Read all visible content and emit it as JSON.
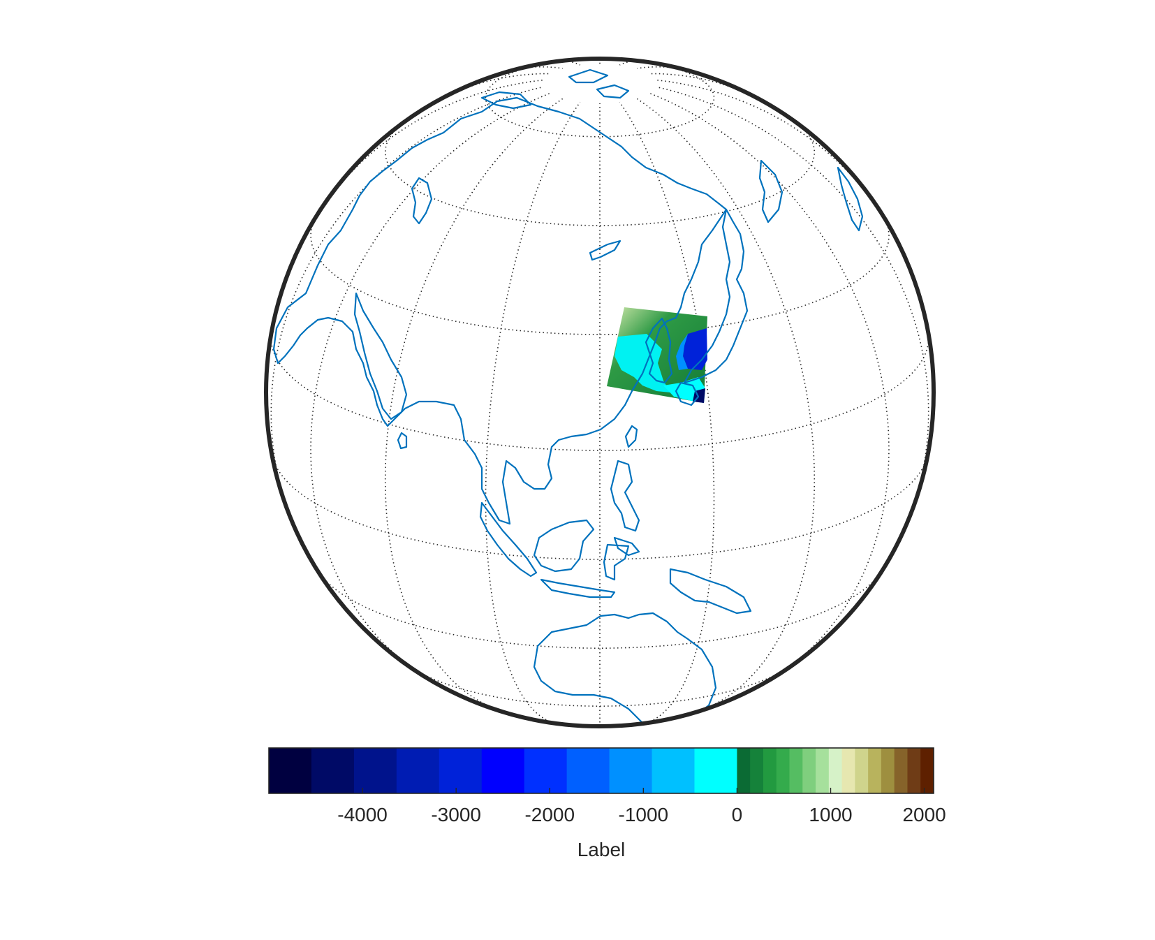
{
  "figure": {
    "projection": "orthographic",
    "center": {
      "lat": 20,
      "lon": 120
    },
    "graticule": {
      "parallels_deg": [
        -50,
        -30,
        -10,
        10,
        30,
        50,
        70
      ],
      "meridians_deg": [
        60,
        80,
        100,
        120,
        140,
        160,
        180
      ]
    },
    "colors": {
      "coastline": "#0072BD",
      "frame": "#262626",
      "grid": "#262626"
    },
    "data_patch": {
      "region": "Korean Peninsula / East Sea",
      "lat_range": [
        33,
        43
      ],
      "lon_range": [
        120,
        132
      ]
    }
  },
  "colorbar": {
    "label": "Label",
    "limits": [
      -5000,
      2100
    ],
    "ticks": [
      "-4000",
      "-3000",
      "-2000",
      "-1000",
      "0",
      "1000",
      "2000"
    ],
    "tick_values": [
      -4000,
      -3000,
      -2000,
      -1000,
      0,
      1000,
      2000
    ],
    "ocean_colors": [
      "#000040",
      "#000a66",
      "#00138c",
      "#001cb3",
      "#0022d9",
      "#0000ff",
      "#0030ff",
      "#0060ff",
      "#0090ff",
      "#00c0ff",
      "#00ffff"
    ],
    "land_colors": [
      "#0b6b34",
      "#15823a",
      "#229a40",
      "#34ab4c",
      "#55bd62",
      "#7fcf7e",
      "#a6e09c",
      "#d6f2c8",
      "#e6e7b0",
      "#cfd48c",
      "#b8b35d",
      "#9e8f3f",
      "#86632a",
      "#6f3c16",
      "#5e2000"
    ]
  },
  "chart_data": {
    "type": "heatmap",
    "title": "",
    "xlabel": "",
    "ylabel": "",
    "colorbar_label": "Label",
    "colorbar_range": [
      -5000,
      2100
    ],
    "colorbar_ticks": [
      -4000,
      -3000,
      -2000,
      -1000,
      0,
      1000,
      2000
    ],
    "patch_extent": {
      "lat": [
        33,
        43
      ],
      "lon": [
        120,
        132
      ]
    },
    "legend": "none"
  }
}
